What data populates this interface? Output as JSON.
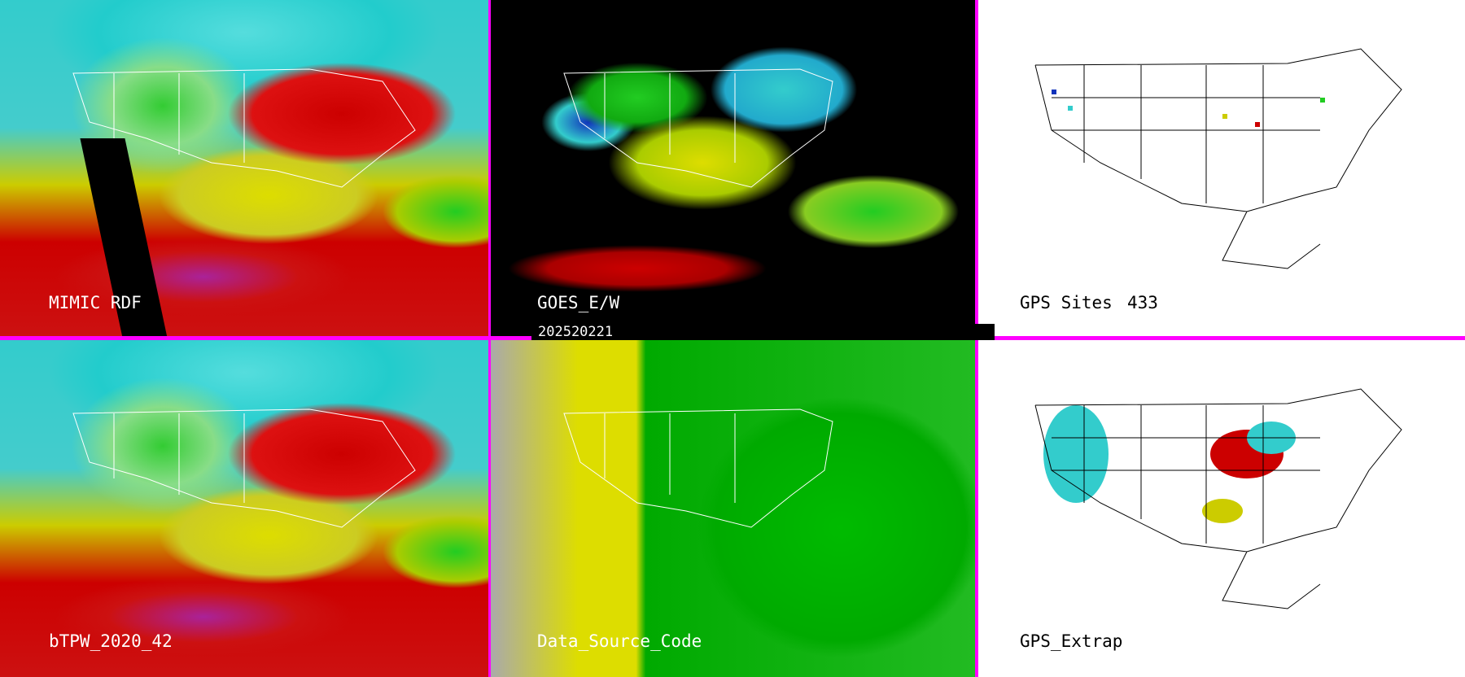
{
  "panels": [
    {
      "label": "MIMIC RDF"
    },
    {
      "label": "GOES_E/W"
    },
    {
      "label": "GPS Sites",
      "count": "433"
    },
    {
      "label": "bTPW_2020_42"
    },
    {
      "label": "Data_Source_Code"
    },
    {
      "label": "GPS_Extrap"
    }
  ],
  "date_bar": "202520221",
  "colors": {
    "divider": "#ff00ff",
    "background_map": "#000000",
    "gps_panel": "#ffffff"
  }
}
